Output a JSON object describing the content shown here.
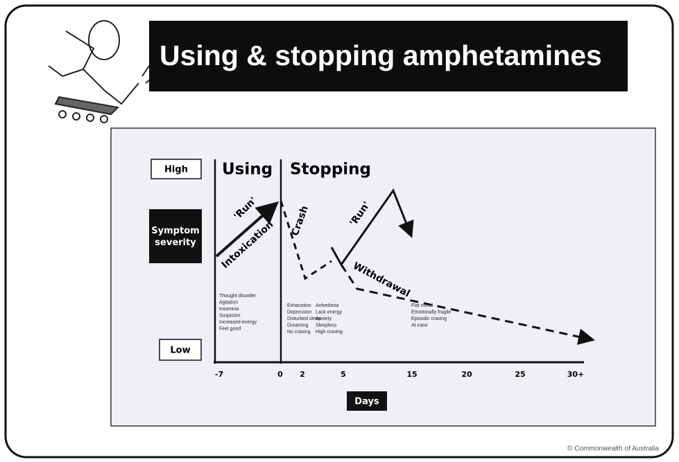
{
  "header": {
    "title": "Using & stopping amphetamines"
  },
  "diagram": {
    "severity_high": "High",
    "severity_label": "Symptom severity",
    "severity_low": "Low",
    "phases": [
      "Using",
      "Stopping"
    ],
    "annotations": [
      "'Run'",
      "Intoxication",
      "Crash",
      "'Run'",
      "Withdrawal"
    ],
    "x_ticks": [
      "-7",
      "0",
      "2",
      "5",
      "15",
      "20",
      "25",
      "30+"
    ],
    "x_label": "Days",
    "symptom_columns": [
      [
        "Thought disorder",
        "Agitation",
        "Insomnia",
        "Suspicion",
        "Increased energy",
        "Feel good"
      ],
      [
        "Exhaustion",
        "Depression",
        "Disturbed sleep",
        "Dreaming",
        "No craving"
      ],
      [
        "Anhedonia",
        "Lack energy",
        "Anxiety",
        "Sleepless",
        "High craving"
      ],
      [
        "Flat mood",
        "Emotionally fragile",
        "Episodic craving",
        "At ease"
      ]
    ]
  },
  "footer": "© Commonwealth of Australia"
}
